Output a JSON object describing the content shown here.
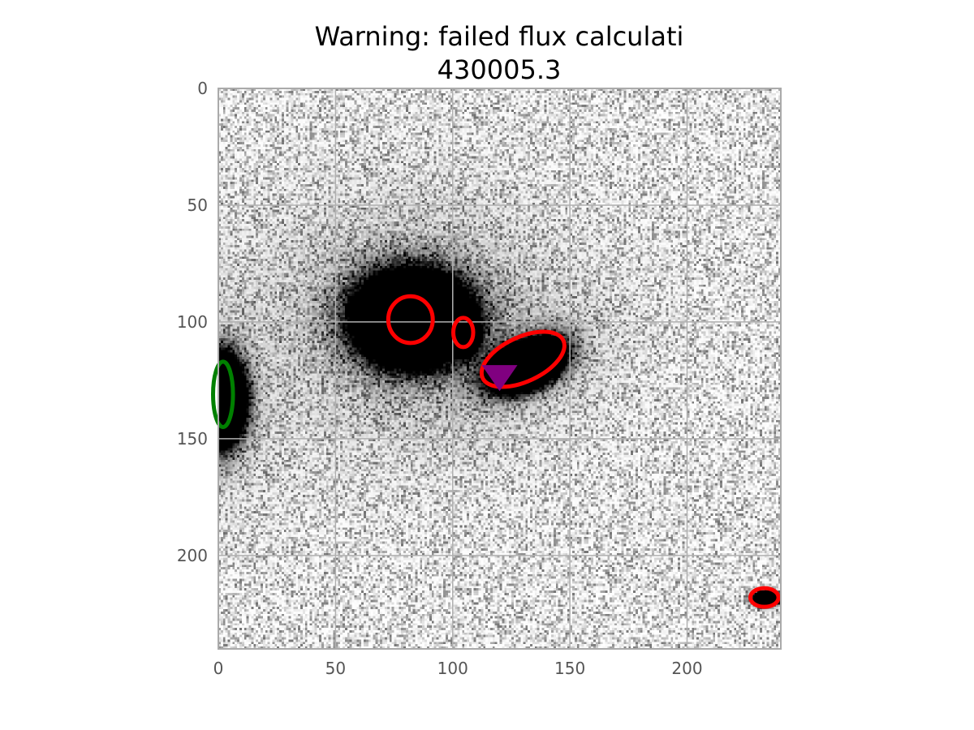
{
  "chart_data": {
    "type": "heatmap",
    "title": "Warning: failed flux calculati",
    "subtitle": "430005.3",
    "xlabel": "",
    "ylabel": "",
    "xlim": [
      0,
      240
    ],
    "ylim": [
      240,
      0
    ],
    "y_axis_inverted": true,
    "grid": true,
    "colormap": "gray_r",
    "x_ticks": [
      0,
      50,
      100,
      150,
      200
    ],
    "y_ticks": [
      0,
      50,
      100,
      150,
      200
    ],
    "x_tick_labels": [
      "0",
      "50",
      "100",
      "150",
      "200"
    ],
    "y_tick_labels": [
      "0",
      "50",
      "100",
      "150",
      "200"
    ],
    "sources": [
      {
        "x": 82,
        "y": 98,
        "rx": 11,
        "ry": 9,
        "angle": 0,
        "peak": 1.0,
        "halo": 1.0
      },
      {
        "x": 105,
        "y": 104,
        "rx": 2.5,
        "ry": 4,
        "angle": 0,
        "peak": 0.8,
        "halo": 0.1
      },
      {
        "x": 131,
        "y": 118,
        "rx": 8,
        "ry": 4.5,
        "angle": -25,
        "peak": 1.0,
        "halo": 0.35
      },
      {
        "x": 0,
        "y": 133,
        "rx": 5,
        "ry": 9,
        "angle": 0,
        "peak": 1.0,
        "halo": 0.4
      },
      {
        "x": 233,
        "y": 218,
        "rx": 2.5,
        "ry": 1.5,
        "angle": 0,
        "peak": 0.9,
        "halo": 0.1
      }
    ],
    "ellipses": [
      {
        "x": 82,
        "y": 99,
        "width": 19,
        "height": 20,
        "angle": 0,
        "color": "#ff0000"
      },
      {
        "x": 104.5,
        "y": 104.5,
        "width": 8.5,
        "height": 12.5,
        "angle": 0,
        "color": "#ff0000"
      },
      {
        "x": 130,
        "y": 116,
        "width": 38,
        "height": 19,
        "angle": -25,
        "color": "#ff0000"
      },
      {
        "x": 2,
        "y": 131,
        "width": 8.5,
        "height": 28,
        "angle": 0,
        "color": "#008000"
      },
      {
        "x": 233,
        "y": 218,
        "width": 12,
        "height": 8,
        "angle": 0,
        "color": "#ff0000"
      }
    ],
    "markers": [
      {
        "x": 120,
        "y": 123,
        "shape": "triangle-down",
        "color": "#800080"
      }
    ],
    "colors": {
      "frame": "#aaaaaa",
      "grid": "#b0b0b0",
      "tick_text": "#555555",
      "title_text": "#000000"
    }
  }
}
